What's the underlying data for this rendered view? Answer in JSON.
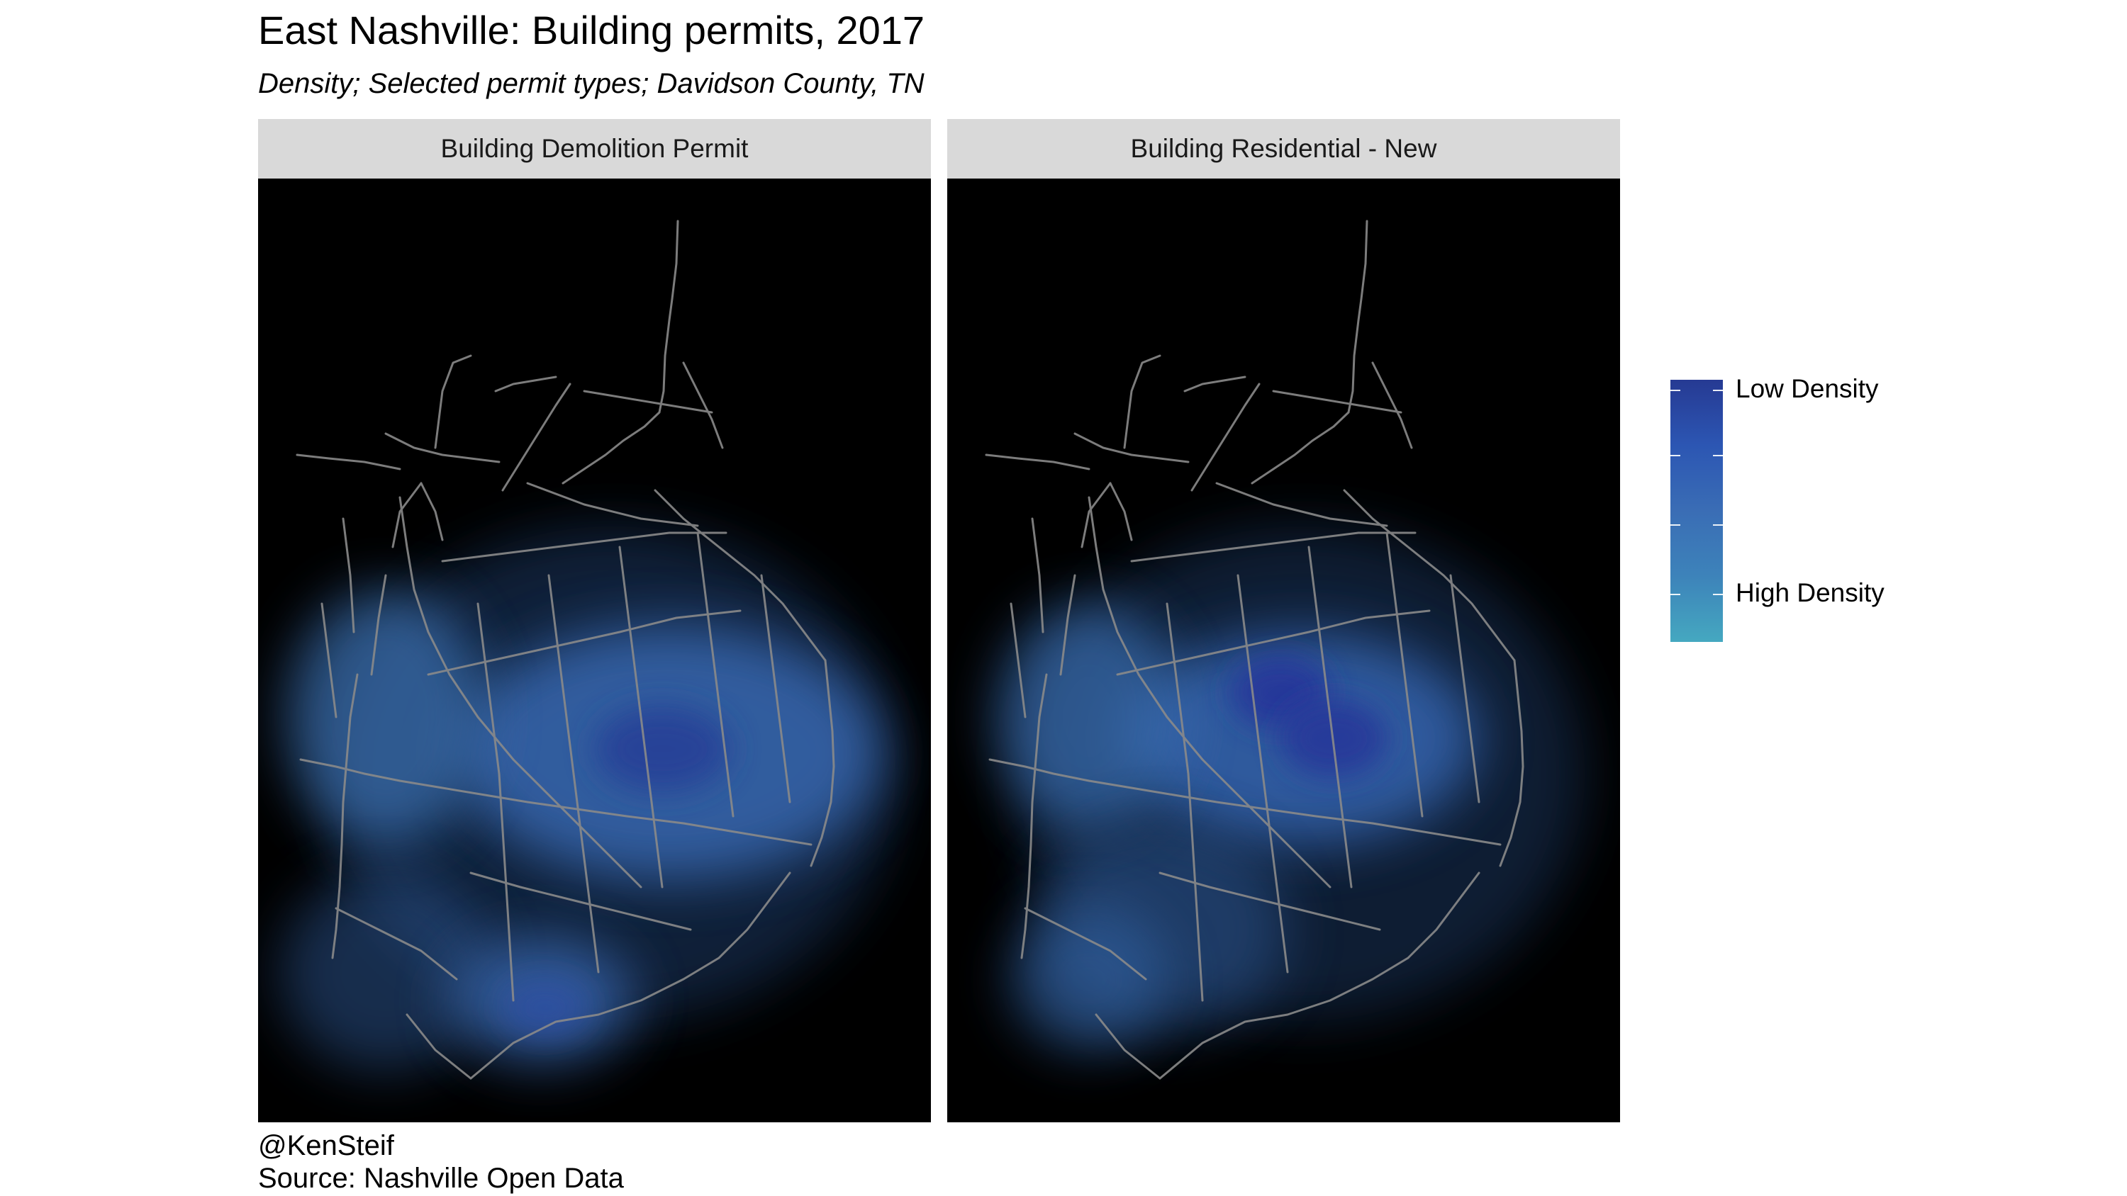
{
  "title": "East Nashville: Building permits, 2017",
  "subtitle": "Density; Selected permit types; Davidson County, TN",
  "facets": [
    {
      "label": "Building Demolition Permit"
    },
    {
      "label": "Building Residential - New"
    }
  ],
  "legend": {
    "high_label": "Low Density",
    "low_label": "High Density",
    "gradient_colors": [
      "#263a93",
      "#2c56b3",
      "#3a6db5",
      "#3d83ba",
      "#45a8c0"
    ]
  },
  "caption": {
    "author": "@KenSteif",
    "source": "Source: Nashville Open Data"
  },
  "colors": {
    "map_background": "#000000",
    "streets": "#8a8a8a",
    "strip_background": "#d9d9d9"
  }
}
